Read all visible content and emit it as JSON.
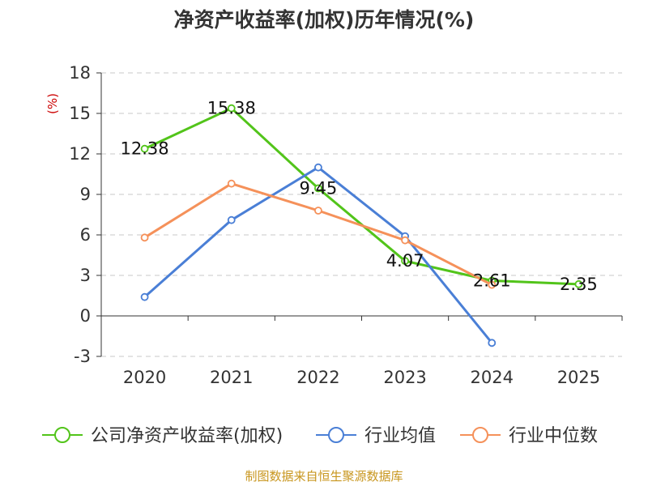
{
  "chart_data": {
    "type": "line",
    "title": "净资产收益率(加权)历年情况(%)",
    "ylabel": "(%)",
    "categories": [
      "2020",
      "2021",
      "2022",
      "2023",
      "2024",
      "2025"
    ],
    "ylim": [
      -3,
      18
    ],
    "yticks": [
      -3,
      0,
      3,
      6,
      9,
      12,
      15,
      18
    ],
    "grid": true,
    "legend_position": "bottom",
    "series": [
      {
        "name": "公司净资产收益率(加权)",
        "color": "#52c41a",
        "values": [
          12.38,
          15.38,
          9.45,
          4.07,
          2.61,
          2.35
        ],
        "labels": [
          "12.38",
          "15.38",
          "9.45",
          "4.07",
          "2.61",
          "2.35"
        ]
      },
      {
        "name": "行业均值",
        "color": "#4a7fd6",
        "values": [
          1.4,
          7.1,
          11.0,
          5.9,
          -2.0,
          null
        ]
      },
      {
        "name": "行业中位数",
        "color": "#f5915a",
        "values": [
          5.8,
          9.8,
          7.8,
          5.6,
          2.3,
          null
        ]
      }
    ]
  },
  "source": "制图数据来自恒生聚源数据库"
}
